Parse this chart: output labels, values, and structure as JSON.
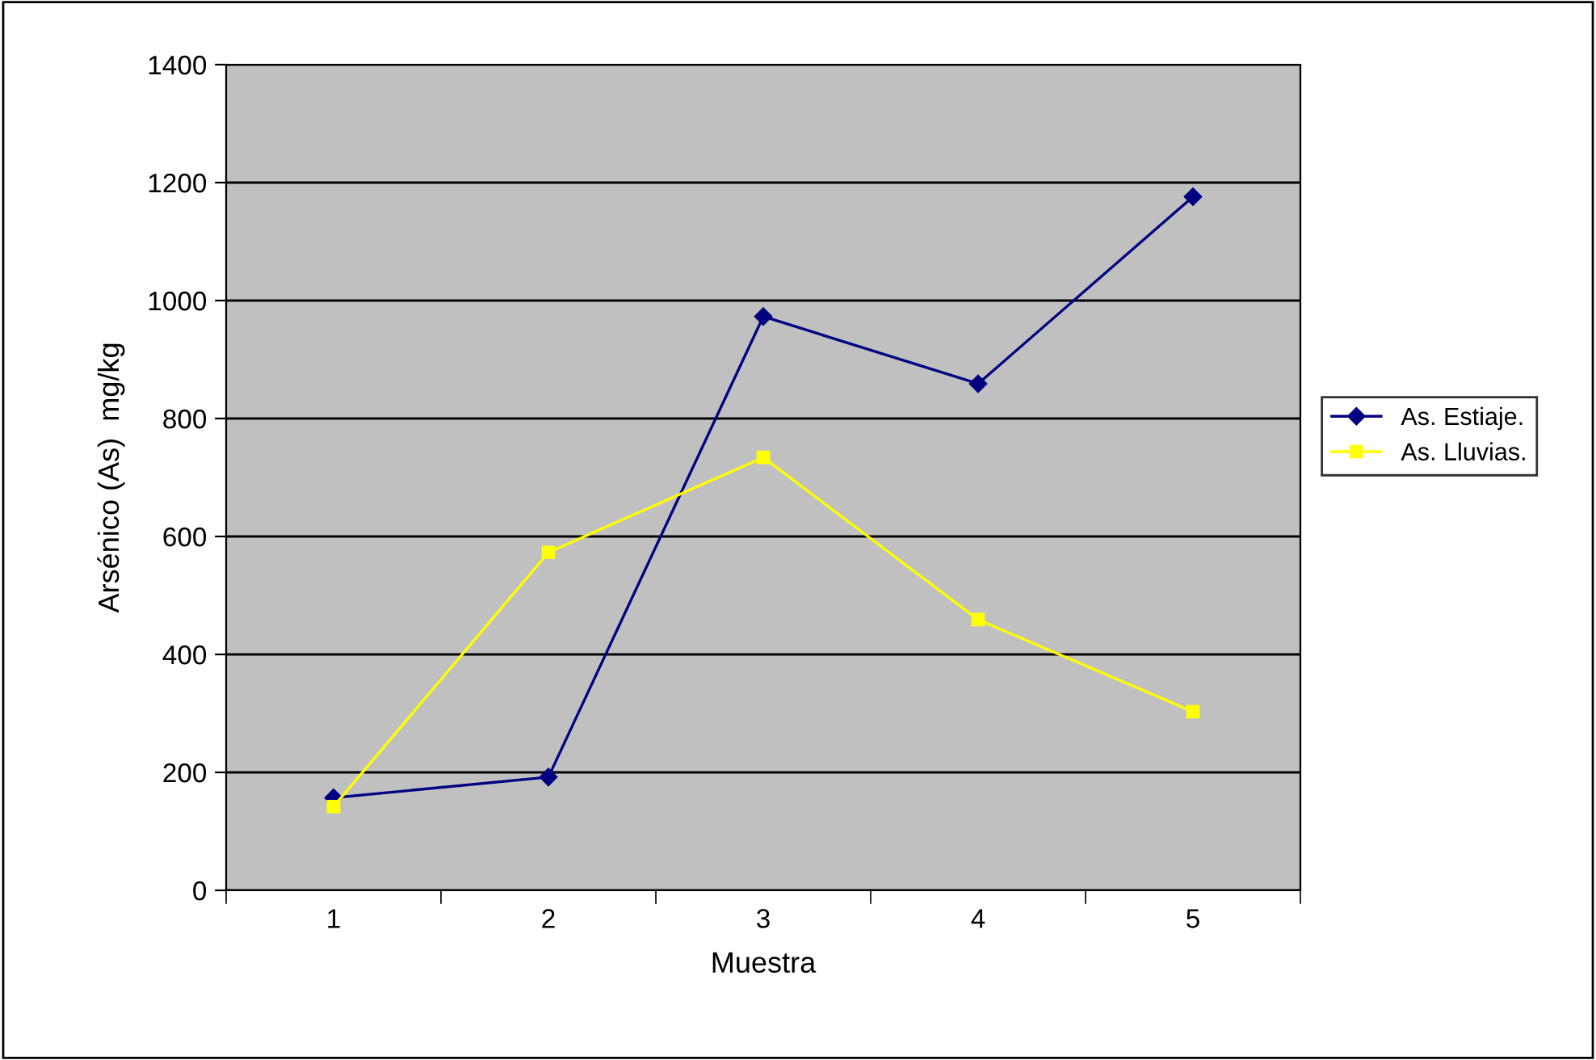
{
  "chart_data": {
    "type": "line",
    "xlabel": "Muestra",
    "ylabel": "Arsénico (As)  mg/kg",
    "categories": [
      "1",
      "2",
      "3",
      "4",
      "5"
    ],
    "series": [
      {
        "name": "As. Estiaje.",
        "color": "#000080",
        "marker": "diamond",
        "values": [
          157,
          192,
          973,
          859,
          1176
        ]
      },
      {
        "name": "As. Lluvias.",
        "color": "#ffff00",
        "marker": "square",
        "values": [
          142,
          573,
          734,
          459,
          303
        ]
      }
    ],
    "ylim": [
      0,
      1400
    ],
    "yticks": [
      0,
      200,
      400,
      600,
      800,
      1000,
      1200,
      1400
    ],
    "grid": "y",
    "legend": "right",
    "line_style": "solid"
  }
}
